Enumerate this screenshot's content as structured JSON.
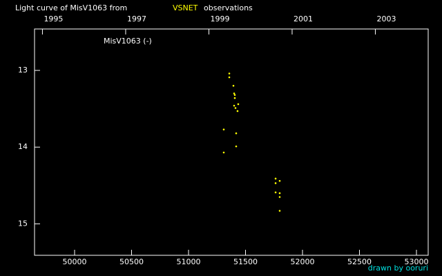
{
  "chart_data": {
    "type": "scatter",
    "title_before": "Light curve of MisV1063 from",
    "title_link": "VSNET",
    "title_after": "observations",
    "credit": "drawn by ooruri",
    "series": [
      {
        "name": "MisV1063 (-)",
        "color": "#ffff00",
        "x": [
          51357.6,
          51357.6,
          51394,
          51400,
          51406,
          51406,
          51436,
          51400,
          51412,
          51430,
          51309,
          51418,
          51418,
          51309,
          51764,
          51800,
          51764,
          51764,
          51800,
          51800,
          51800
        ],
        "values": [
          13.04,
          13.09,
          13.2,
          13.3,
          13.32,
          13.36,
          13.44,
          13.46,
          13.49,
          13.53,
          13.77,
          13.82,
          13.99,
          14.07,
          14.41,
          14.44,
          14.47,
          14.59,
          14.6,
          14.65,
          14.83
        ]
      }
    ],
    "xlim": [
      49648.5,
      53103
    ],
    "xticks": [
      50000,
      50500,
      51000,
      51500,
      52000,
      52500,
      53000
    ],
    "x2lim": [
      1994.81,
      2004.27
    ],
    "x2ticks": [
      1995,
      1997,
      1999,
      2001,
      2003
    ],
    "ylim": [
      15.41,
      12.46
    ],
    "yticks": [
      13,
      14,
      15
    ]
  }
}
